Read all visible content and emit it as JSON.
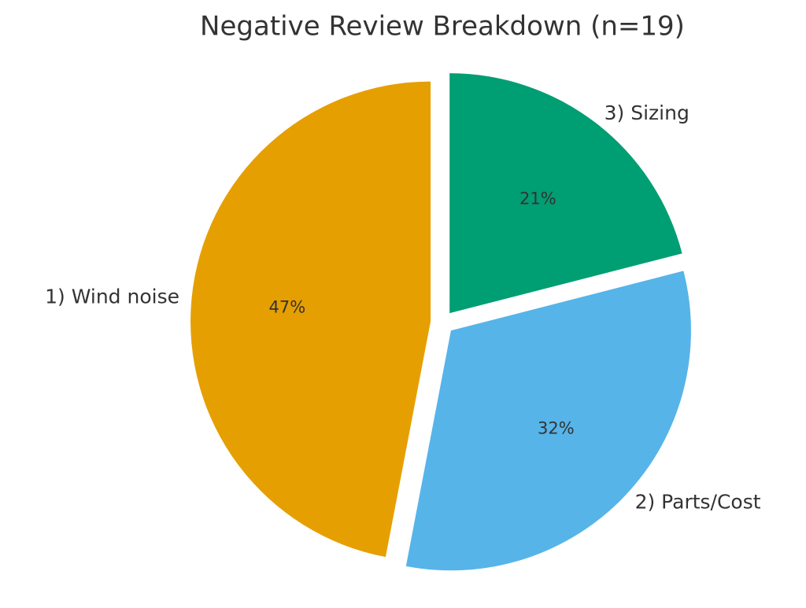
{
  "chart_data": {
    "type": "pie",
    "title": "Negative Review Breakdown (n=19)",
    "categories": [
      "1) Wind noise",
      "2) Parts/Cost",
      "3) Sizing"
    ],
    "values": [
      47,
      32,
      21
    ],
    "value_labels": [
      "47%",
      "32%",
      "21%"
    ],
    "colors": [
      "#E69F00",
      "#56B4E9",
      "#009E73"
    ]
  }
}
